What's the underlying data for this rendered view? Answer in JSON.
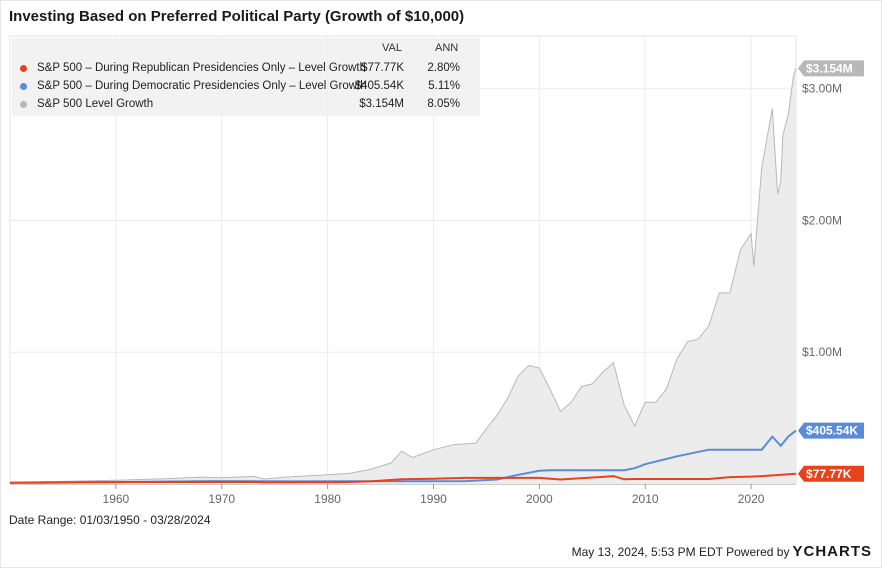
{
  "title": "Investing Based on Preferred Political Party (Growth of $10,000)",
  "legend": {
    "col_val": "VAL",
    "col_ann": "ANN",
    "entries": [
      {
        "name": "S&P 500 – During Republican Presidencies Only – Level Growth",
        "val": "$77.77K",
        "ann": "2.80%",
        "color": "#e8421c"
      },
      {
        "name": "S&P 500 – During Democratic Presidencies Only – Level Growth",
        "val": "$405.54K",
        "ann": "5.11%",
        "color": "#5b8bd8"
      },
      {
        "name": "S&P 500 Level Growth",
        "val": "$3.154M",
        "ann": "8.05%",
        "color": "#b8b8b8"
      }
    ]
  },
  "footer": {
    "date_range": "Date Range: 01/03/1950 - 03/28/2024",
    "timestamp": "May 13, 2024, 5:53 PM EDT Powered by",
    "brand_y": "Y",
    "brand": "CHARTS"
  },
  "chart_data": {
    "type": "area",
    "x_axis_ticks": [
      "1960",
      "1970",
      "1980",
      "1990",
      "2000",
      "2010",
      "2020"
    ],
    "y_axis_ticks": [
      "$1.00M",
      "$2.00M",
      "$3.00M"
    ],
    "xlim": [
      1950.0,
      2024.24
    ],
    "ylim": [
      0,
      3400000
    ],
    "end_labels": [
      "$3.154M",
      "$405.54K",
      "$77.77K"
    ],
    "series": [
      {
        "name": "S&P 500 Level Growth",
        "color": "#b8b8b8",
        "fill": true,
        "points": [
          [
            1950,
            10000
          ],
          [
            1955,
            20000
          ],
          [
            1960,
            29000
          ],
          [
            1965,
            41000
          ],
          [
            1968,
            52000
          ],
          [
            1970,
            47000
          ],
          [
            1973,
            58000
          ],
          [
            1974,
            38000
          ],
          [
            1976,
            52000
          ],
          [
            1980,
            70000
          ],
          [
            1982,
            80000
          ],
          [
            1984,
            110000
          ],
          [
            1986,
            160000
          ],
          [
            1987,
            250000
          ],
          [
            1988,
            200000
          ],
          [
            1990,
            260000
          ],
          [
            1992,
            300000
          ],
          [
            1994,
            310000
          ],
          [
            1995,
            420000
          ],
          [
            1996,
            520000
          ],
          [
            1997,
            650000
          ],
          [
            1998,
            820000
          ],
          [
            1999,
            900000
          ],
          [
            2000,
            880000
          ],
          [
            2001,
            720000
          ],
          [
            2002,
            550000
          ],
          [
            2003,
            620000
          ],
          [
            2004,
            740000
          ],
          [
            2005,
            760000
          ],
          [
            2006,
            850000
          ],
          [
            2007,
            920000
          ],
          [
            2008,
            600000
          ],
          [
            2009,
            440000
          ],
          [
            2010,
            620000
          ],
          [
            2011,
            620000
          ],
          [
            2012,
            720000
          ],
          [
            2013,
            950000
          ],
          [
            2014,
            1080000
          ],
          [
            2015,
            1100000
          ],
          [
            2016,
            1200000
          ],
          [
            2017,
            1450000
          ],
          [
            2018,
            1450000
          ],
          [
            2019,
            1780000
          ],
          [
            2020,
            1900000
          ],
          [
            2020.25,
            1650000
          ],
          [
            2021,
            2400000
          ],
          [
            2022,
            2850000
          ],
          [
            2022.5,
            2200000
          ],
          [
            2022.8,
            2300000
          ],
          [
            2023,
            2650000
          ],
          [
            2023.5,
            2800000
          ],
          [
            2024,
            3100000
          ],
          [
            2024.24,
            3154000
          ]
        ]
      },
      {
        "name": "S&P 500 – During Democratic Presidencies Only – Level Growth",
        "color": "#5b8bd8",
        "fill": false,
        "points": [
          [
            1950,
            10000
          ],
          [
            1953,
            14000
          ],
          [
            1960,
            14000
          ],
          [
            1962,
            16000
          ],
          [
            1969,
            22000
          ],
          [
            1977,
            20000
          ],
          [
            1981,
            21000
          ],
          [
            1989,
            21000
          ],
          [
            1993,
            22000
          ],
          [
            1996,
            34000
          ],
          [
            1998,
            70000
          ],
          [
            2000,
            100000
          ],
          [
            2001,
            105000
          ],
          [
            2008,
            105000
          ],
          [
            2009,
            120000
          ],
          [
            2010,
            150000
          ],
          [
            2013,
            210000
          ],
          [
            2016,
            260000
          ],
          [
            2017,
            260000
          ],
          [
            2021,
            260000
          ],
          [
            2022,
            360000
          ],
          [
            2022.8,
            290000
          ],
          [
            2023.5,
            360000
          ],
          [
            2024.24,
            405540
          ]
        ]
      },
      {
        "name": "S&P 500 – During Republican Presidencies Only – Level Growth",
        "color": "#e8421c",
        "fill": false,
        "points": [
          [
            1950,
            10000
          ],
          [
            1953,
            10000
          ],
          [
            1957,
            13000
          ],
          [
            1961,
            15000
          ],
          [
            1968,
            15000
          ],
          [
            1973,
            16000
          ],
          [
            1974,
            12000
          ],
          [
            1977,
            13000
          ],
          [
            1981,
            13000
          ],
          [
            1984,
            20000
          ],
          [
            1987,
            36000
          ],
          [
            1990,
            40000
          ],
          [
            1993,
            46000
          ],
          [
            2000,
            46000
          ],
          [
            2002,
            34000
          ],
          [
            2006,
            54000
          ],
          [
            2007,
            60000
          ],
          [
            2008,
            36000
          ],
          [
            2009,
            38000
          ],
          [
            2016,
            38000
          ],
          [
            2018,
            52000
          ],
          [
            2020,
            56000
          ],
          [
            2021,
            60000
          ],
          [
            2024.24,
            77770
          ]
        ]
      }
    ]
  }
}
